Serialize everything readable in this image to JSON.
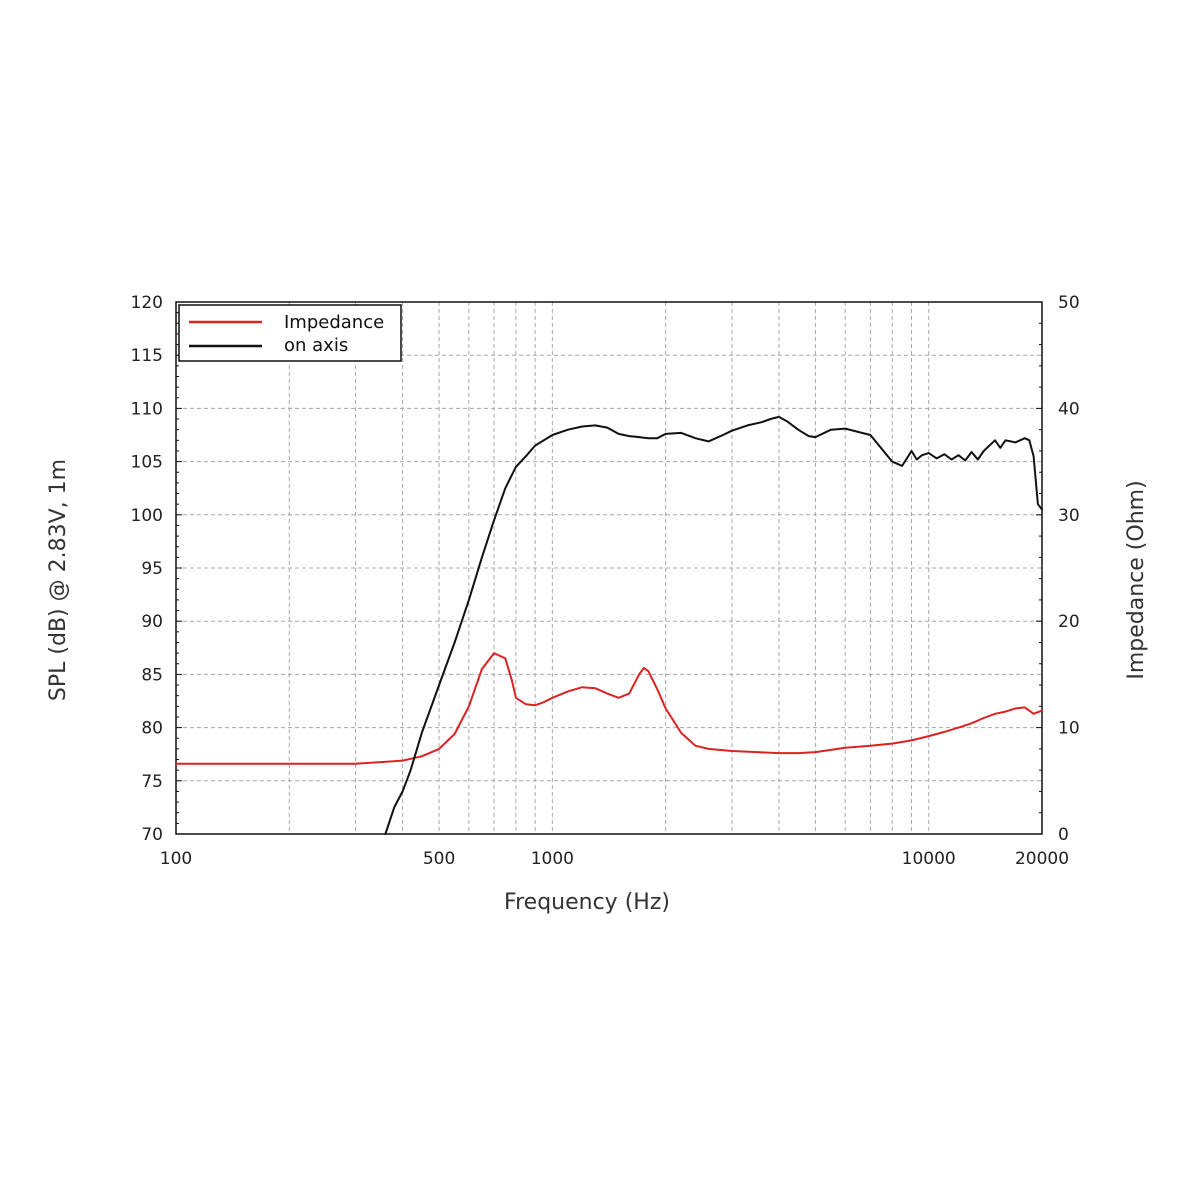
{
  "chart_data": {
    "type": "line",
    "xlabel": "Frequency (Hz)",
    "ylabel": "SPL (dB) @ 2.83V, 1m",
    "y2label": "Impedance (Ohm)",
    "x_scale": "log",
    "xlim": [
      100,
      20000
    ],
    "ylim": [
      70,
      120
    ],
    "y2lim": [
      0,
      50
    ],
    "grid": true,
    "legend_position": "top-left",
    "x_tick_labels": [
      "100",
      "500",
      "1000",
      "10000",
      "20000"
    ],
    "y_tick_labels": [
      "120",
      "115",
      "110",
      "105",
      "100",
      "95",
      "90",
      "85",
      "80",
      "75",
      "70"
    ],
    "y2_tick_labels": [
      "50",
      "40",
      "30",
      "20",
      "10",
      "0"
    ],
    "series": [
      {
        "name": "Impedance",
        "axis": "right",
        "color": "#dd2222",
        "x": [
          100,
          200,
          300,
          400,
          450,
          500,
          550,
          600,
          650,
          700,
          750,
          780,
          800,
          850,
          900,
          950,
          1000,
          1100,
          1200,
          1300,
          1400,
          1500,
          1600,
          1700,
          1750,
          1800,
          1900,
          2000,
          2200,
          2400,
          2600,
          3000,
          3500,
          4000,
          4500,
          5000,
          5500,
          6000,
          7000,
          8000,
          9000,
          10000,
          11000,
          12000,
          13000,
          14000,
          15000,
          16000,
          17000,
          18000,
          19000,
          20000
        ],
        "y": [
          6.6,
          6.6,
          6.6,
          6.9,
          7.3,
          8.0,
          9.4,
          12.0,
          15.5,
          17.0,
          16.5,
          14.5,
          12.8,
          12.2,
          12.1,
          12.4,
          12.8,
          13.4,
          13.8,
          13.7,
          13.2,
          12.8,
          13.2,
          15.0,
          15.6,
          15.3,
          13.6,
          11.8,
          9.5,
          8.3,
          8.0,
          7.8,
          7.7,
          7.6,
          7.6,
          7.7,
          7.9,
          8.1,
          8.3,
          8.5,
          8.8,
          9.2,
          9.6,
          10.0,
          10.4,
          10.9,
          11.3,
          11.5,
          11.8,
          11.9,
          11.3,
          11.6
        ]
      },
      {
        "name": "on axis",
        "axis": "left",
        "color": "#111111",
        "x": [
          360,
          380,
          400,
          420,
          450,
          500,
          550,
          600,
          650,
          700,
          750,
          800,
          850,
          900,
          1000,
          1100,
          1200,
          1300,
          1400,
          1500,
          1600,
          1700,
          1800,
          1900,
          2000,
          2200,
          2400,
          2600,
          2800,
          3000,
          3300,
          3600,
          3800,
          4000,
          4200,
          4500,
          4800,
          5000,
          5500,
          6000,
          7000,
          8000,
          8500,
          9000,
          9300,
          9600,
          10000,
          10500,
          11000,
          11500,
          12000,
          12500,
          13000,
          13500,
          14000,
          15000,
          15500,
          16000,
          17000,
          18000,
          18500,
          19000,
          19500,
          20000
        ],
        "y": [
          70.0,
          72.5,
          74.0,
          76.0,
          79.5,
          84.0,
          88.0,
          92.0,
          96.0,
          99.5,
          102.5,
          104.5,
          105.5,
          106.5,
          107.5,
          108.0,
          108.3,
          108.4,
          108.2,
          107.6,
          107.4,
          107.3,
          107.2,
          107.2,
          107.6,
          107.7,
          107.2,
          106.9,
          107.4,
          107.9,
          108.4,
          108.7,
          109.0,
          109.2,
          108.8,
          108.0,
          107.4,
          107.3,
          108.0,
          108.1,
          107.5,
          105.0,
          104.6,
          106.0,
          105.2,
          105.6,
          105.8,
          105.3,
          105.7,
          105.2,
          105.6,
          105.1,
          105.9,
          105.2,
          106.0,
          107.0,
          106.3,
          107.0,
          106.8,
          107.2,
          107.0,
          105.5,
          101.0,
          100.5
        ]
      }
    ]
  }
}
